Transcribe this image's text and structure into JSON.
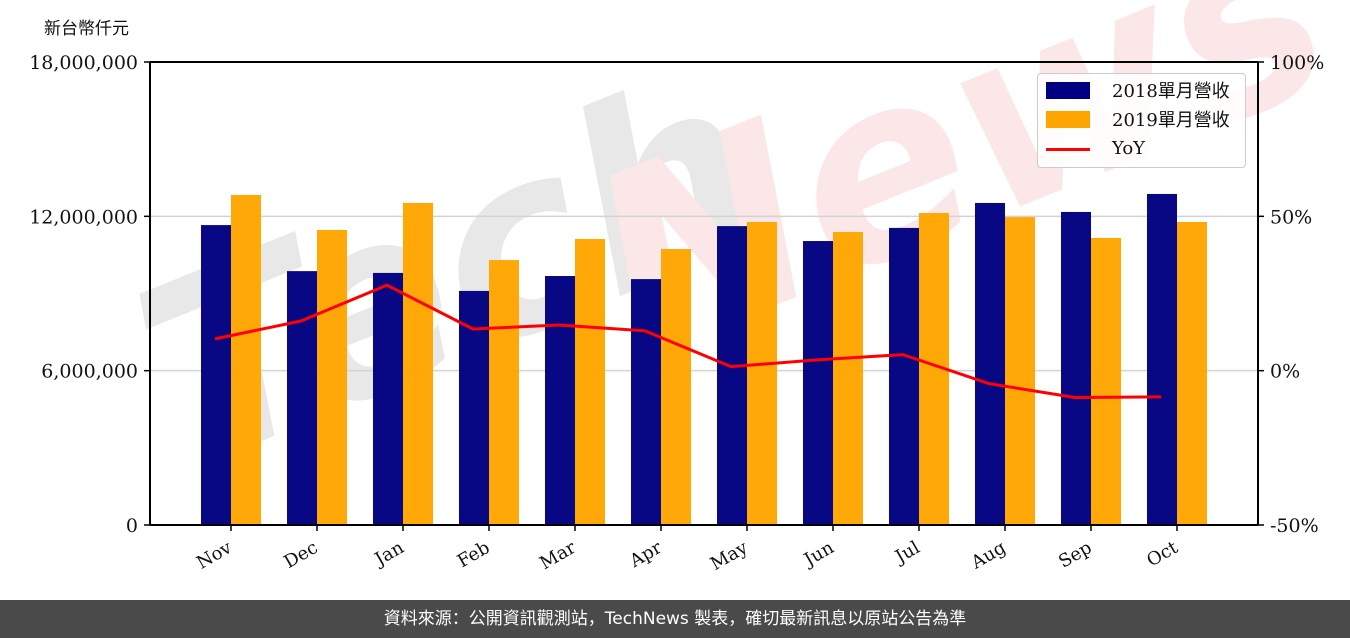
{
  "chart_data": {
    "type": "bar",
    "title": "",
    "unit_label": "新台幣仟元",
    "xlabel": "",
    "ylabel": "新台幣仟元",
    "categories": [
      "Nov",
      "Dec",
      "Jan",
      "Feb",
      "Mar",
      "Apr",
      "May",
      "Jun",
      "Jul",
      "Aug",
      "Sep",
      "Oct"
    ],
    "series": [
      {
        "name": "2018單月營收",
        "type": "bar",
        "color": "#000080",
        "values": [
          11660000,
          9870000,
          9800000,
          9100000,
          9680000,
          9560000,
          11620000,
          11040000,
          11550000,
          12520000,
          12170000,
          12870000
        ]
      },
      {
        "name": "2019單月營收",
        "type": "bar",
        "color": "#FFA500",
        "values": [
          12830000,
          11470000,
          12520000,
          10300000,
          11120000,
          10730000,
          11780000,
          11390000,
          12130000,
          11970000,
          11160000,
          11780000
        ]
      },
      {
        "name": "YoY",
        "type": "line",
        "color": "#FF0000",
        "axis": "right",
        "values": [
          10.3,
          16.1,
          27.7,
          13.5,
          14.8,
          12.9,
          1.3,
          3.5,
          5.2,
          -4.2,
          -8.7,
          -8.5
        ]
      }
    ],
    "ylim": [
      0,
      18000000
    ],
    "y_ticks": [
      0,
      6000000,
      12000000,
      18000000
    ],
    "y_tick_labels": [
      "0",
      "6,000,000",
      "12,000,000",
      "18,000,000"
    ],
    "y2lim": [
      -50,
      100
    ],
    "y2_ticks": [
      -50,
      0,
      50,
      100
    ],
    "y2_tick_labels": [
      "-50%",
      "0%",
      "50%",
      "100%"
    ],
    "grid": "horizontal",
    "legend_position": "upper right",
    "watermark": "TechNews"
  },
  "footer": {
    "source_text": "資料來源：公開資訊觀測站，TechNews 製表，確切最新訊息以原站公告為準"
  }
}
